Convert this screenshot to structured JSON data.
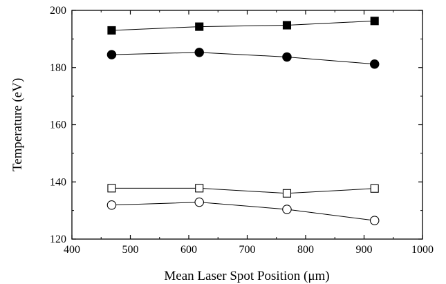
{
  "chart_data": {
    "type": "scatter",
    "title": "",
    "xlabel": "Mean Laser Spot Position (μm)",
    "ylabel": "Temperature (eV)",
    "xlim": [
      400,
      1000
    ],
    "ylim": [
      120,
      200
    ],
    "xticks": [
      400,
      500,
      600,
      700,
      800,
      900,
      1000
    ],
    "yticks": [
      120,
      140,
      160,
      180,
      200
    ],
    "grid": false,
    "legend": "none",
    "connect_points": true,
    "series": [
      {
        "marker": "filled-square",
        "x": [
          468,
          618,
          768,
          918
        ],
        "y": [
          193.0,
          194.3,
          194.8,
          196.3
        ]
      },
      {
        "marker": "filled-circle",
        "x": [
          468,
          618,
          768,
          918
        ],
        "y": [
          184.5,
          185.3,
          183.7,
          181.2
        ]
      },
      {
        "marker": "open-square",
        "x": [
          468,
          618,
          768,
          918
        ],
        "y": [
          137.8,
          137.8,
          136.0,
          137.7
        ]
      },
      {
        "marker": "open-circle",
        "x": [
          468,
          618,
          768,
          918
        ],
        "y": [
          131.9,
          132.9,
          130.4,
          126.5
        ]
      }
    ],
    "colors": {
      "line": "#000000",
      "marker": "#000000",
      "open_fill": "#ffffff"
    }
  }
}
